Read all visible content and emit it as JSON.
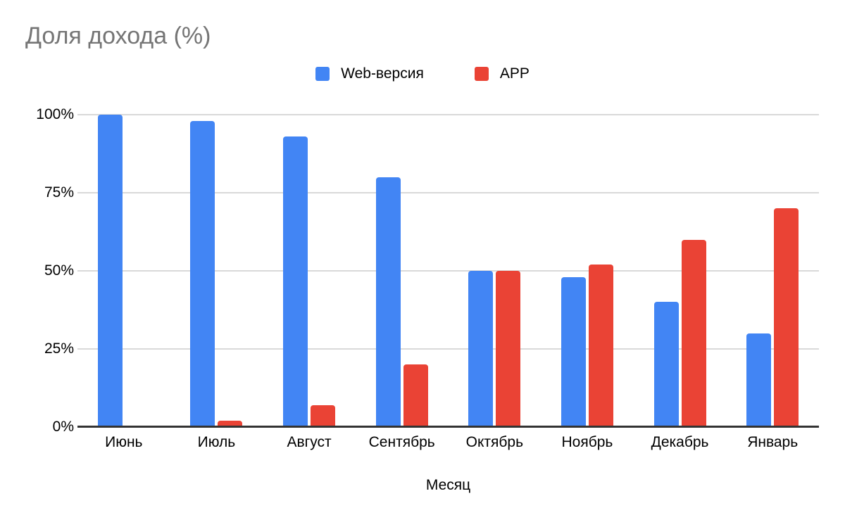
{
  "chart_data": {
    "type": "bar",
    "title": "Доля дохода (%)",
    "categories": [
      "Июнь",
      "Июль",
      "Август",
      "Сентябрь",
      "Октябрь",
      "Ноябрь",
      "Декабрь",
      "Январь"
    ],
    "series": [
      {
        "name": "Web-версия",
        "color": "#4285F4",
        "values": [
          100,
          98,
          93,
          80,
          50,
          48,
          40,
          30
        ]
      },
      {
        "name": "APP",
        "color": "#EA4335",
        "values": [
          0,
          2,
          7,
          20,
          50,
          52,
          60,
          70
        ]
      }
    ],
    "xlabel": "Месяц",
    "ylabel": "",
    "ylim": [
      0,
      100
    ],
    "yticks": [
      {
        "value": 0,
        "label": "0%"
      },
      {
        "value": 25,
        "label": "25%"
      },
      {
        "value": 50,
        "label": "50%"
      },
      {
        "value": 75,
        "label": "75%"
      },
      {
        "value": 100,
        "label": "100%"
      }
    ],
    "grid": true,
    "legend_position": "top",
    "colors": {
      "title_text": "#757575",
      "tick_text": "#000000",
      "gridline": "#d9d9d9",
      "axis_line": "#333333",
      "background": "#ffffff"
    }
  }
}
